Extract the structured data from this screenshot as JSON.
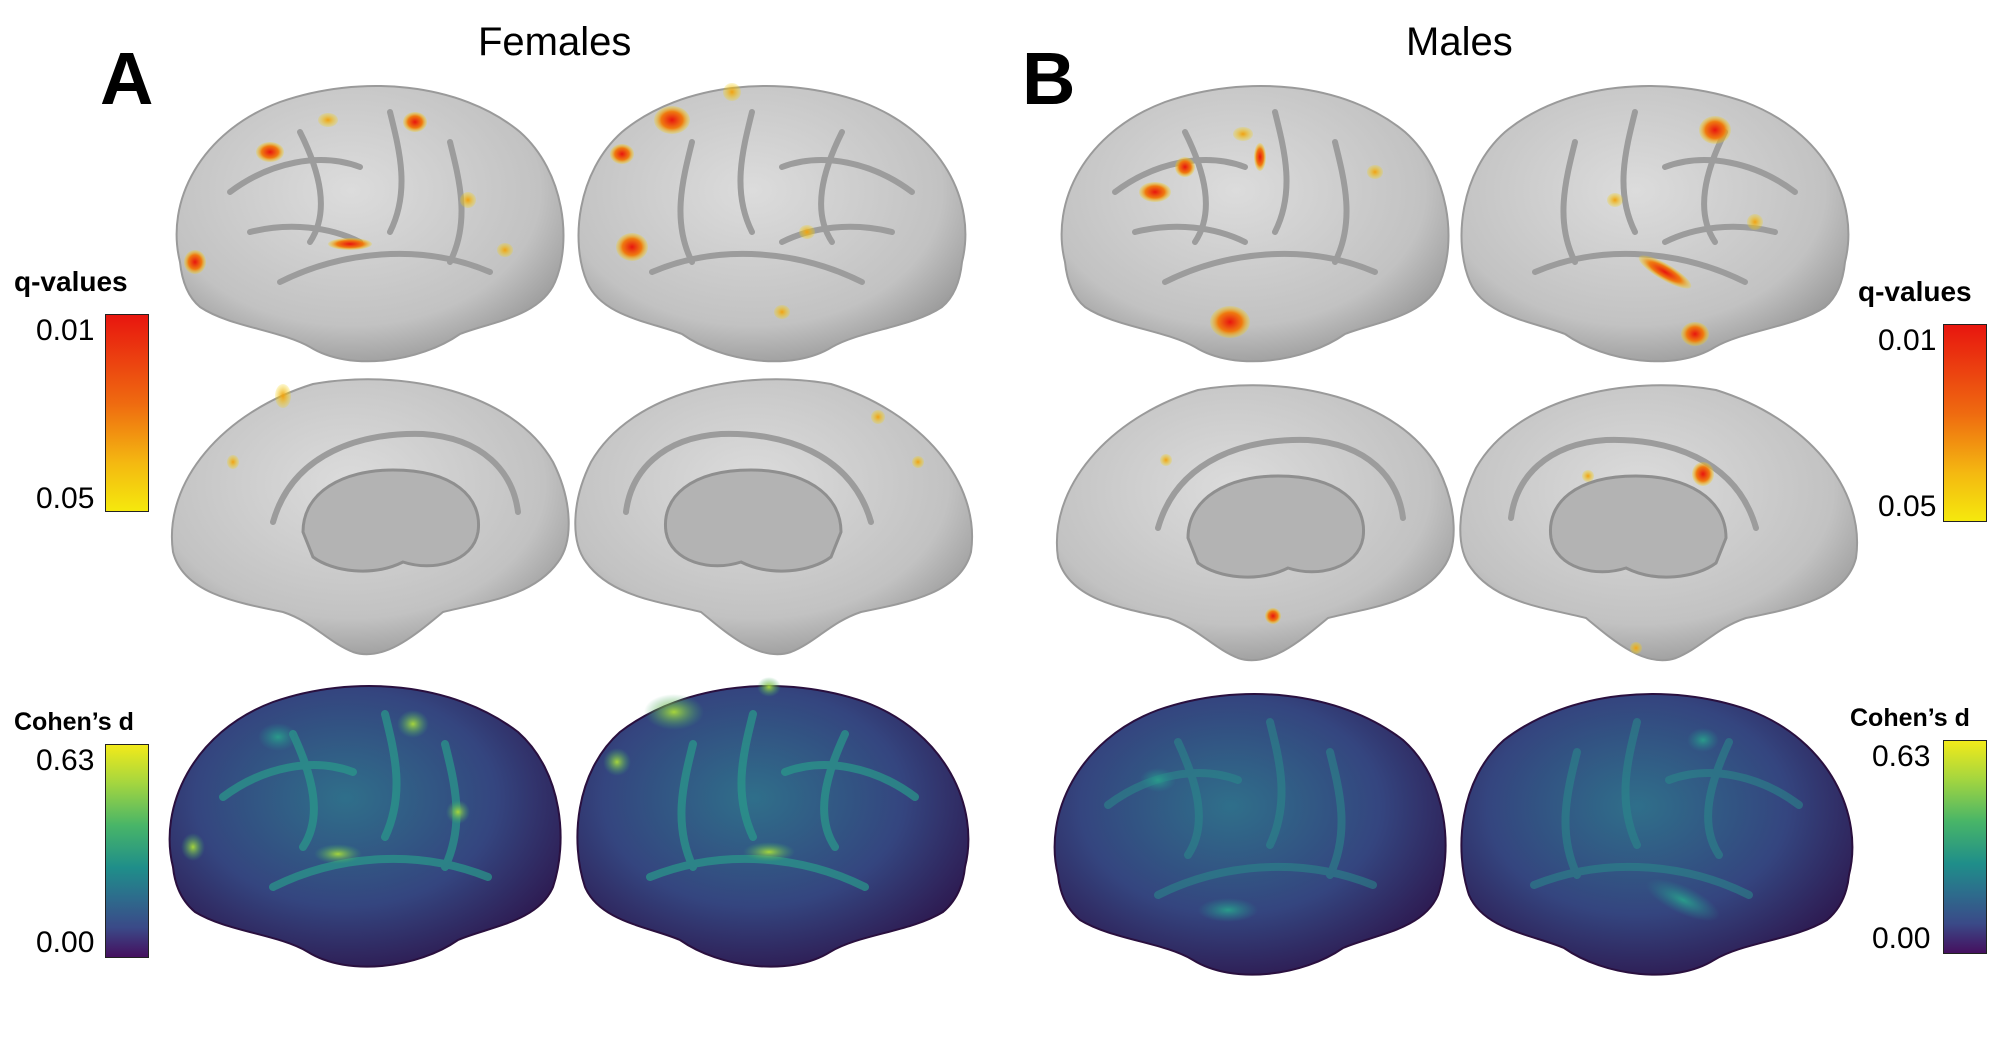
{
  "panels": [
    {
      "letter": "A",
      "title": "Females"
    },
    {
      "letter": "B",
      "title": "Males"
    }
  ],
  "legends": {
    "q_values": {
      "title": "q-values",
      "top": "0.01",
      "bottom": "0.05"
    },
    "cohens_d": {
      "title": "Cohen’s d",
      "top": "0.63",
      "bottom": "0.00"
    }
  },
  "colors": {
    "cortex_gray": "#c9c9c9",
    "cortex_gray_dark": "#9a9a9a",
    "medial_wall": "#b5b5b5",
    "sig_red": "#e8160f",
    "sig_orange": "#ef7a10",
    "sig_yellow": "#f3d411",
    "effect_dark": "#3a1558",
    "effect_teal": "#26838c",
    "effect_green": "#6cc24a"
  }
}
